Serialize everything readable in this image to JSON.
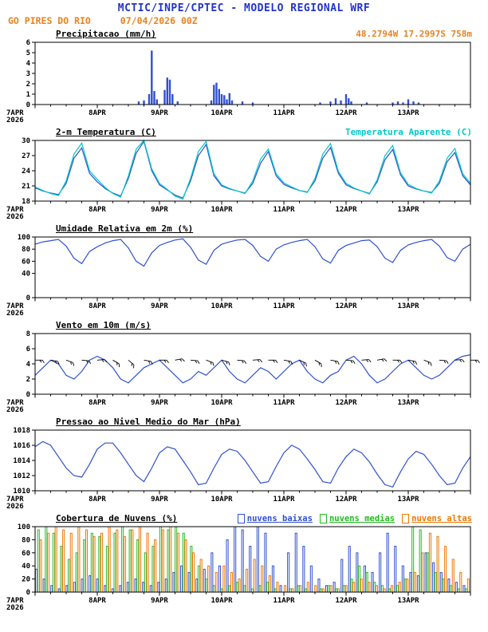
{
  "header": {
    "title": "MCTIC/INPE/CPTEC - MODELO REGIONAL WRF",
    "station": "GO PIRES DO RIO",
    "run": "07/04/2026 00Z",
    "location": "48.2794W 17.2997S 758m"
  },
  "colors": {
    "title_blue": "#2233cc",
    "orange": "#e8821e",
    "line_blue": "#3050d0",
    "cyan": "#00c8c8",
    "green": "#22bb22",
    "cloud_orange": "#ee7700",
    "axis": "#000000"
  },
  "x_axis": {
    "hours_total": 168,
    "day_labels": [
      "7APR",
      "8APR",
      "9APR",
      "10APR",
      "11APR",
      "12APR",
      "13APR"
    ],
    "year_label": "2026"
  },
  "chart_data": [
    {
      "id": "precip",
      "type": "bar",
      "title": "Precipitacao (mm/h)",
      "ylabel": "mm/h",
      "ylim": [
        0,
        6
      ],
      "yticks": [
        0,
        1,
        2,
        3,
        4,
        5,
        6
      ],
      "color": "#3050d0",
      "bars": [
        [
          40,
          0.3
        ],
        [
          42,
          0.4
        ],
        [
          44,
          1.0
        ],
        [
          45,
          5.2
        ],
        [
          46,
          1.3
        ],
        [
          47,
          0.5
        ],
        [
          50,
          1.4
        ],
        [
          51,
          2.6
        ],
        [
          52,
          2.4
        ],
        [
          53,
          1.0
        ],
        [
          55,
          0.3
        ],
        [
          68,
          0.4
        ],
        [
          69,
          1.9
        ],
        [
          70,
          2.1
        ],
        [
          71,
          1.5
        ],
        [
          72,
          1.0
        ],
        [
          73,
          0.9
        ],
        [
          74,
          0.5
        ],
        [
          75,
          1.1
        ],
        [
          76,
          0.4
        ],
        [
          80,
          0.3
        ],
        [
          84,
          0.2
        ],
        [
          110,
          0.2
        ],
        [
          114,
          0.3
        ],
        [
          116,
          0.6
        ],
        [
          118,
          0.4
        ],
        [
          120,
          1.0
        ],
        [
          121,
          0.6
        ],
        [
          122,
          0.3
        ],
        [
          128,
          0.2
        ],
        [
          138,
          0.2
        ],
        [
          140,
          0.3
        ],
        [
          142,
          0.2
        ],
        [
          144,
          0.5
        ],
        [
          146,
          0.3
        ],
        [
          148,
          0.2
        ]
      ]
    },
    {
      "id": "temp",
      "type": "line",
      "title": "2-m Temperatura (C)",
      "right_title": "Temperatura Aparente (C)",
      "ylim": [
        18,
        30
      ],
      "yticks": [
        18,
        21,
        24,
        27,
        30
      ],
      "x_step_hours": 3,
      "series": [
        {
          "name": "2-m Temperatura (C)",
          "color": "#3050d0",
          "values": [
            20.6,
            20.0,
            19.6,
            19.3,
            21.5,
            26.5,
            28.5,
            23.5,
            21.8,
            20.5,
            19.6,
            19.0,
            22.5,
            27.5,
            29.8,
            24.0,
            21.2,
            20.2,
            19.2,
            18.6,
            22.0,
            27.0,
            29.2,
            23.0,
            21.0,
            20.4,
            20.0,
            19.6,
            21.5,
            25.5,
            27.8,
            23.0,
            21.3,
            20.6,
            20.1,
            19.8,
            22.0,
            26.5,
            28.6,
            23.5,
            21.2,
            20.5,
            20.0,
            19.5,
            21.8,
            26.2,
            28.2,
            23.2,
            21.0,
            20.4,
            20.0,
            19.7,
            21.5,
            25.8,
            27.6,
            23.0,
            21.2
          ]
        },
        {
          "name": "Temperatura Aparente (C)",
          "color": "#00c8c8",
          "values": [
            20.8,
            20.1,
            19.5,
            19.1,
            22.0,
            27.3,
            29.5,
            24.0,
            22.3,
            20.7,
            19.5,
            18.8,
            23.0,
            28.3,
            30.0,
            24.4,
            21.5,
            20.3,
            19.0,
            18.4,
            22.5,
            27.8,
            29.8,
            23.4,
            21.2,
            20.5,
            20.0,
            19.5,
            22.0,
            26.3,
            28.3,
            23.4,
            21.6,
            20.8,
            20.1,
            19.7,
            22.5,
            27.3,
            29.4,
            23.9,
            21.5,
            20.6,
            20.0,
            19.4,
            22.2,
            27.0,
            29.0,
            23.6,
            21.3,
            20.5,
            20.0,
            19.6,
            22.0,
            26.5,
            28.4,
            23.4,
            21.5
          ]
        }
      ]
    },
    {
      "id": "rh",
      "type": "line",
      "title": "Umidade Relativa em 2m (%)",
      "ylim": [
        0,
        100
      ],
      "yticks": [
        0,
        40,
        60,
        80,
        100
      ],
      "x_step_hours": 3,
      "series": [
        {
          "name": "Umidade Relativa em 2m (%)",
          "color": "#3050d0",
          "values": [
            88,
            92,
            94,
            96,
            85,
            65,
            56,
            76,
            84,
            90,
            94,
            96,
            82,
            60,
            52,
            74,
            86,
            91,
            95,
            97,
            83,
            62,
            55,
            78,
            88,
            92,
            95,
            96,
            86,
            68,
            60,
            80,
            87,
            91,
            94,
            96,
            84,
            64,
            57,
            78,
            86,
            90,
            94,
            95,
            84,
            65,
            58,
            78,
            87,
            91,
            94,
            96,
            85,
            66,
            60,
            80,
            88
          ]
        }
      ]
    },
    {
      "id": "wind",
      "type": "line",
      "title": "Vento em 10m (m/s)",
      "ylim": [
        0,
        8
      ],
      "yticks": [
        0,
        2,
        4,
        6,
        8
      ],
      "x_step_hours": 3,
      "series": [
        {
          "name": "Vento em 10m (m/s)",
          "color": "#3050d0",
          "values": [
            2.5,
            3.5,
            4.5,
            4.0,
            2.5,
            2.0,
            3.0,
            4.5,
            5.0,
            4.5,
            3.5,
            2.0,
            1.5,
            2.5,
            3.5,
            4.0,
            4.5,
            3.5,
            2.5,
            1.5,
            2.0,
            3.0,
            2.5,
            3.5,
            4.5,
            3.0,
            2.0,
            1.5,
            2.5,
            3.5,
            3.0,
            2.0,
            3.0,
            4.0,
            4.5,
            3.0,
            2.0,
            1.5,
            2.5,
            3.0,
            4.5,
            5.0,
            4.0,
            2.5,
            1.5,
            2.0,
            3.0,
            4.0,
            4.5,
            3.5,
            2.5,
            2.0,
            2.5,
            3.5,
            4.5,
            5.0,
            5.2
          ]
        }
      ],
      "barbs": {
        "y_value": 4.5,
        "step_hours": 6,
        "directions": [
          90,
          100,
          110,
          95,
          85,
          120,
          130,
          100,
          90,
          80,
          95,
          110,
          105,
          95,
          85,
          90,
          100,
          115,
          120,
          100,
          95,
          85,
          80,
          90,
          100,
          110,
          95,
          85,
          90
        ]
      }
    },
    {
      "id": "pressure",
      "type": "line",
      "title": "Pressao ao Nivel Medio do Mar (hPa)",
      "ylim": [
        1010,
        1018
      ],
      "yticks": [
        1010,
        1012,
        1014,
        1016,
        1018
      ],
      "x_step_hours": 3,
      "series": [
        {
          "name": "Pressao ao Nivel Medio do Mar (hPa)",
          "color": "#3050d0",
          "values": [
            1015.8,
            1016.5,
            1016.0,
            1014.5,
            1013.0,
            1012.0,
            1011.8,
            1013.5,
            1015.5,
            1016.3,
            1016.3,
            1015.0,
            1013.5,
            1012.0,
            1011.2,
            1013.0,
            1015.0,
            1015.8,
            1015.5,
            1014.0,
            1012.5,
            1010.8,
            1011.0,
            1013.0,
            1014.8,
            1015.5,
            1015.2,
            1014.0,
            1012.5,
            1011.0,
            1011.2,
            1013.2,
            1015.0,
            1016.0,
            1015.5,
            1014.2,
            1012.8,
            1011.2,
            1011.0,
            1013.0,
            1014.5,
            1015.5,
            1015.0,
            1013.8,
            1012.2,
            1010.8,
            1010.5,
            1012.5,
            1014.2,
            1015.2,
            1014.8,
            1013.5,
            1012.0,
            1010.8,
            1011.0,
            1013.0,
            1014.5
          ]
        }
      ]
    },
    {
      "id": "clouds",
      "type": "bar-multi",
      "title": "Cobertura de Nuvens (%)",
      "ylim": [
        0,
        100
      ],
      "yticks": [
        0,
        20,
        40,
        60,
        80,
        100
      ],
      "x_step_hours": 3,
      "series": [
        {
          "name": "nuvens baixas",
          "color": "#3050d0",
          "values": [
            35,
            20,
            10,
            5,
            10,
            15,
            20,
            25,
            20,
            10,
            5,
            10,
            15,
            20,
            15,
            10,
            15,
            20,
            30,
            40,
            30,
            20,
            35,
            60,
            40,
            80,
            100,
            95,
            70,
            100,
            90,
            40,
            10,
            60,
            90,
            70,
            40,
            20,
            10,
            15,
            50,
            70,
            60,
            40,
            30,
            60,
            90,
            70,
            40,
            30,
            25,
            60,
            45,
            30,
            20,
            15,
            10
          ]
        },
        {
          "name": "nuvens medias",
          "color": "#22bb22",
          "values": [
            95,
            100,
            90,
            70,
            50,
            60,
            80,
            90,
            85,
            70,
            90,
            100,
            95,
            80,
            60,
            70,
            100,
            95,
            100,
            90,
            70,
            40,
            20,
            10,
            5,
            10,
            15,
            10,
            5,
            10,
            15,
            5,
            0,
            5,
            10,
            5,
            0,
            5,
            10,
            5,
            10,
            20,
            40,
            30,
            15,
            10,
            5,
            10,
            20,
            100,
            95,
            60,
            30,
            20,
            10,
            5,
            5
          ]
        },
        {
          "name": "nuvens altas",
          "color": "#ee7700",
          "values": [
            80,
            90,
            100,
            95,
            90,
            100,
            95,
            85,
            90,
            100,
            95,
            85,
            95,
            100,
            90,
            80,
            95,
            100,
            90,
            80,
            60,
            50,
            40,
            30,
            40,
            30,
            20,
            35,
            50,
            40,
            25,
            15,
            10,
            5,
            10,
            15,
            10,
            5,
            10,
            5,
            10,
            15,
            20,
            15,
            10,
            5,
            10,
            15,
            20,
            30,
            60,
            90,
            85,
            70,
            50,
            30,
            20
          ]
        }
      ]
    }
  ]
}
